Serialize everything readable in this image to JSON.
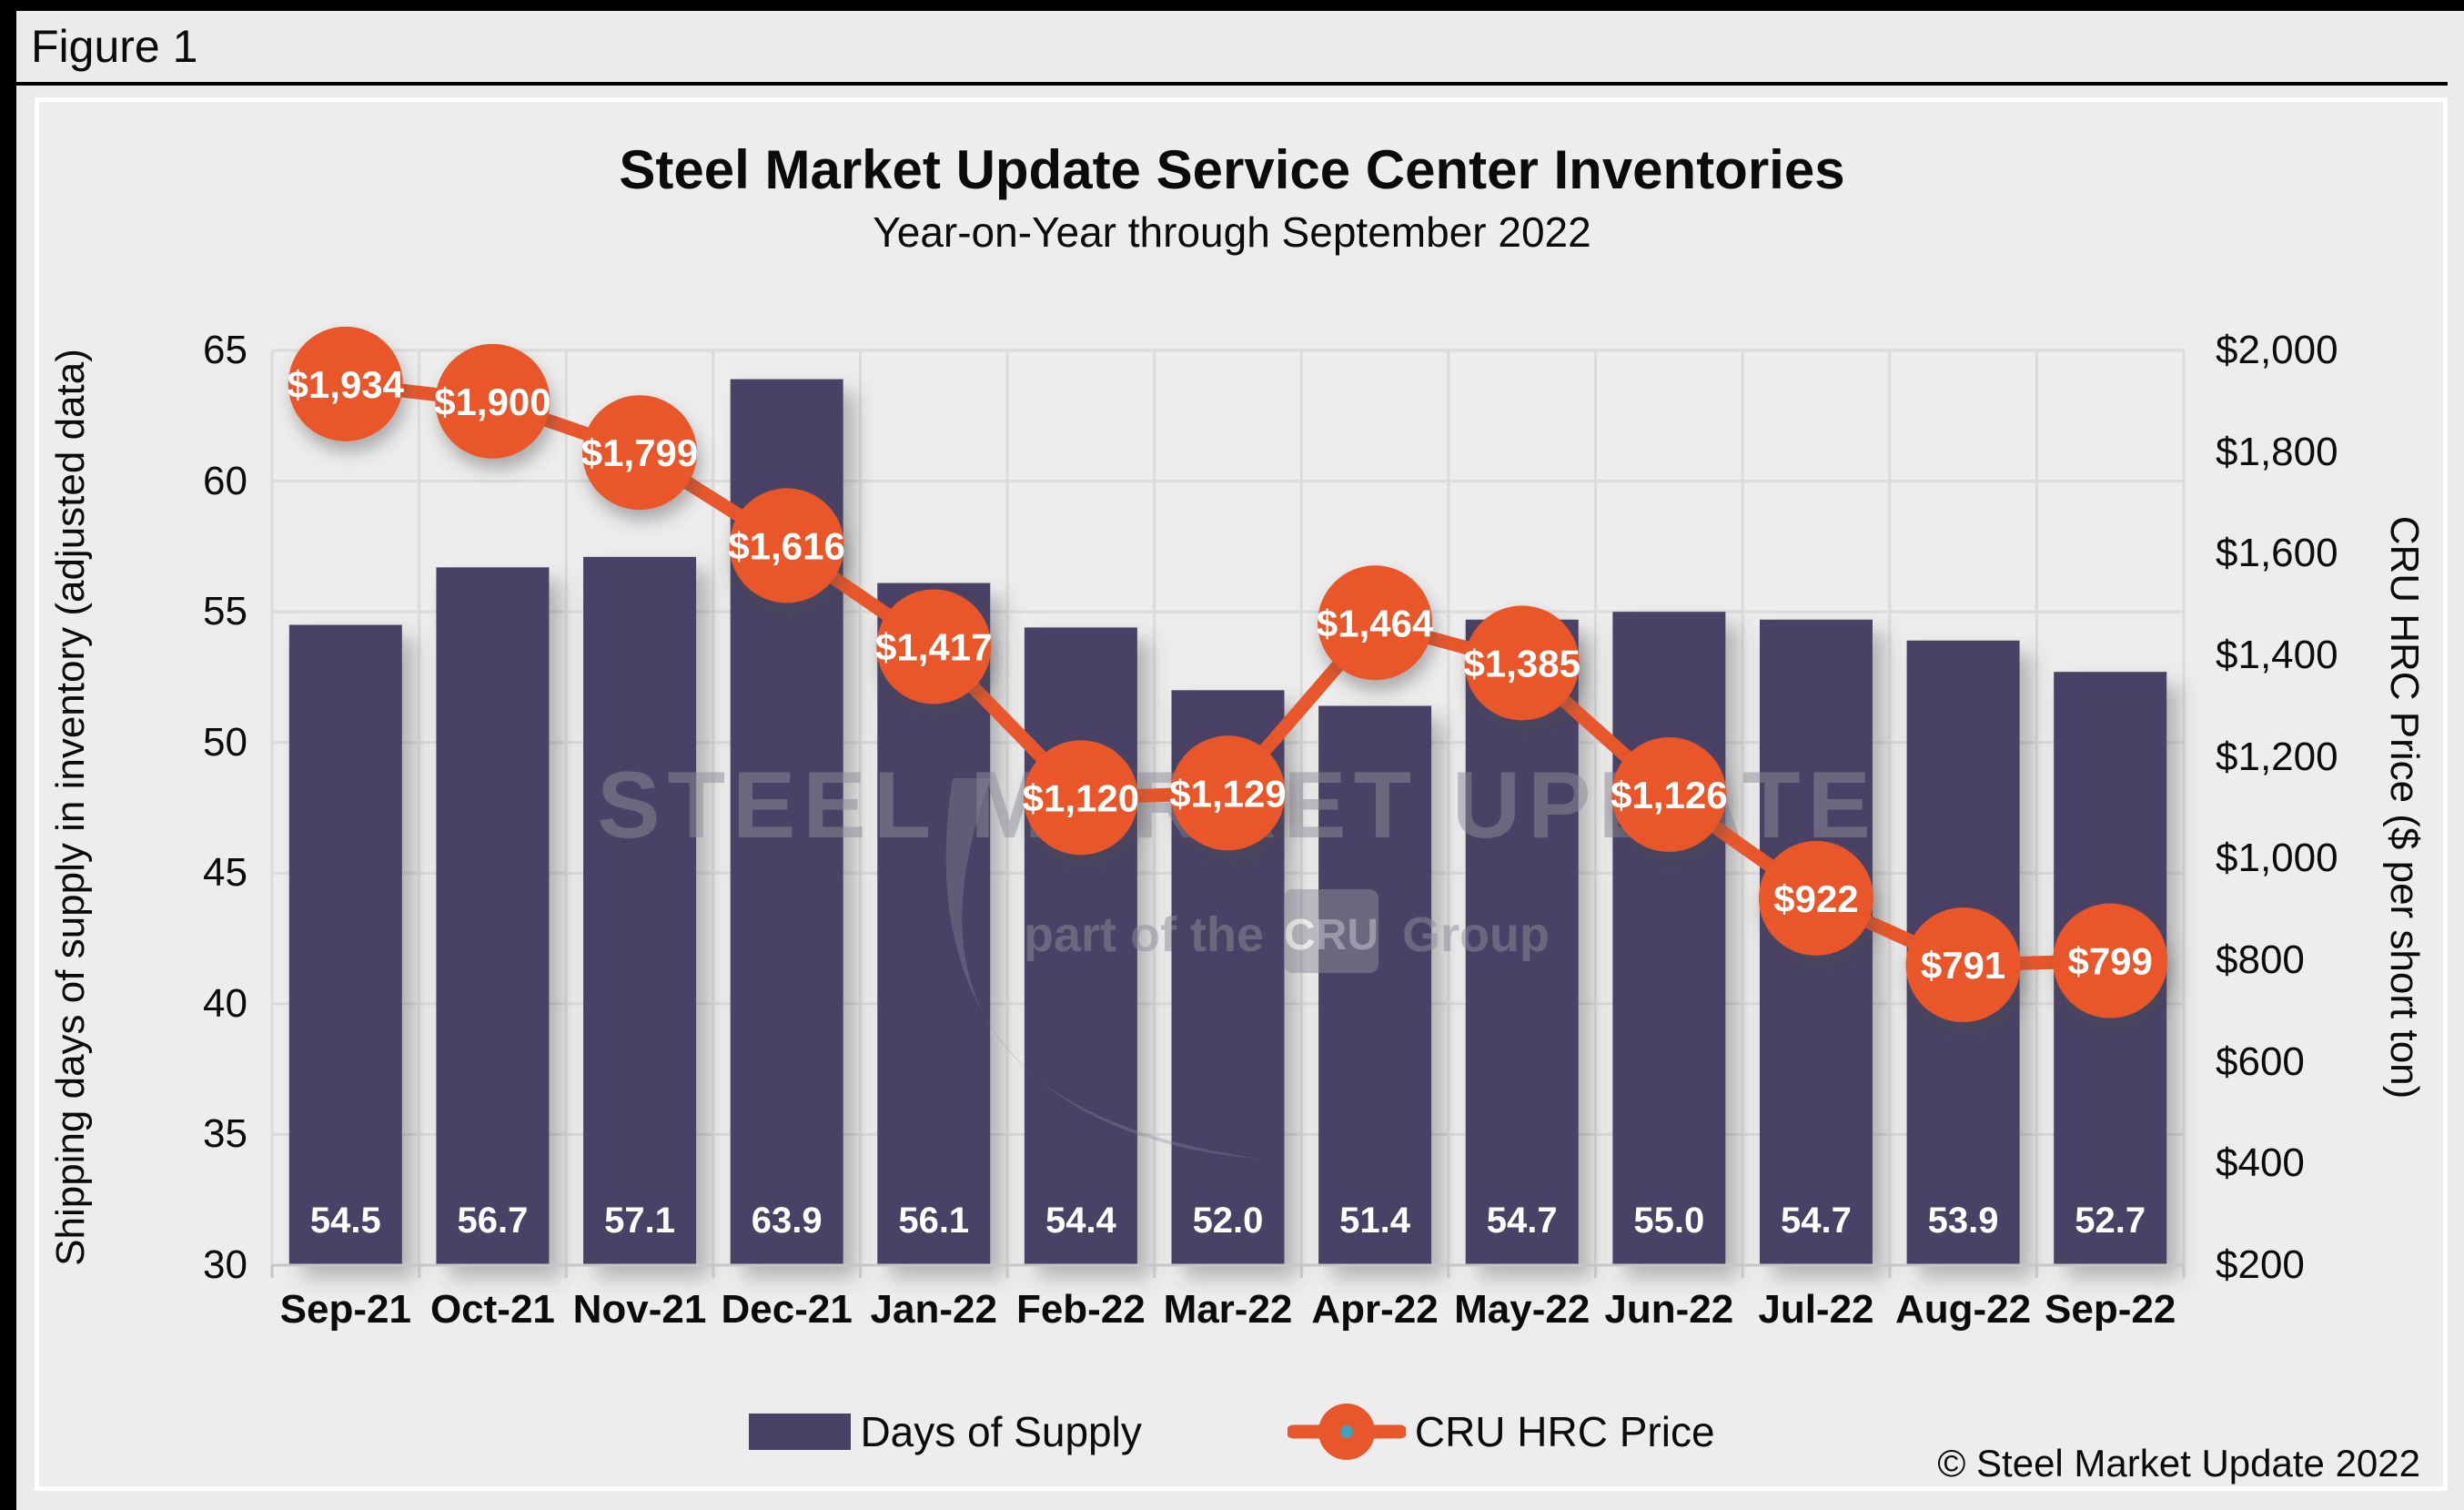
{
  "figure_label": "Figure 1",
  "title": "Steel Market Update Service Center Inventories",
  "subtitle": "Year-on-Year through September 2022",
  "copyright": "© Steel Market Update 2022",
  "watermark": {
    "line1": "STEEL MARKET UPDATE",
    "line2_prefix": "part of the",
    "line2_box": "CRU",
    "line2_suffix": "Group"
  },
  "legend": {
    "bar_label": "Days of Supply",
    "line_label": "CRU HRC Price"
  },
  "colors": {
    "bar": "#4A4266",
    "line": "#E8572B",
    "marker": "#E8572B",
    "marker_text": "#FFFFFF",
    "bar_label_text": "#FFFFFF",
    "legend_dot": "#3FA0C0",
    "plot_bg": "#EDEDED",
    "grid": "#DBDBDB",
    "axis_line": "#C6C6C6",
    "watermark": "#8F8A99"
  },
  "chart_data": {
    "type": "combo",
    "categories": [
      "Sep-21",
      "Oct-21",
      "Nov-21",
      "Dec-21",
      "Jan-22",
      "Feb-22",
      "Mar-22",
      "Apr-22",
      "May-22",
      "Jun-22",
      "Jul-22",
      "Aug-22",
      "Sep-22"
    ],
    "series": [
      {
        "name": "Days of Supply",
        "type": "bar",
        "axis": "left",
        "values": [
          54.5,
          56.7,
          57.1,
          63.9,
          56.1,
          54.4,
          52.0,
          51.4,
          54.7,
          55.0,
          54.7,
          53.9,
          52.7
        ],
        "labels": [
          "54.5",
          "56.7",
          "57.1",
          "63.9",
          "56.1",
          "54.4",
          "52.0",
          "51.4",
          "54.7",
          "55.0",
          "54.7",
          "53.9",
          "52.7"
        ]
      },
      {
        "name": "CRU HRC Price",
        "type": "line",
        "axis": "right",
        "values": [
          1934,
          1900,
          1799,
          1616,
          1417,
          1120,
          1129,
          1464,
          1385,
          1126,
          922,
          791,
          799
        ],
        "labels": [
          "$1,934",
          "$1,900",
          "$1,799",
          "$1,616",
          "$1,417",
          "$1,120",
          "$1,129",
          "$1,464",
          "$1,385",
          "$1,126",
          "$922",
          "$791",
          "$799"
        ]
      }
    ],
    "left_axis": {
      "label": "Shipping days of supply in inventory (adjusted data)",
      "min": 30,
      "max": 65,
      "step": 5,
      "ticks": [
        {
          "value": 65,
          "label": "65"
        },
        {
          "value": 60,
          "label": "60"
        },
        {
          "value": 55,
          "label": "55"
        },
        {
          "value": 50,
          "label": "50"
        },
        {
          "value": 45,
          "label": "45"
        },
        {
          "value": 40,
          "label": "40"
        },
        {
          "value": 35,
          "label": "35"
        },
        {
          "value": 30,
          "label": "30"
        }
      ]
    },
    "right_axis": {
      "label": "CRU HRC Price ($ per short ton)",
      "min": 200,
      "max": 2000,
      "step": 200,
      "ticks": [
        {
          "value": 2000,
          "label": "$2,000"
        },
        {
          "value": 1800,
          "label": "$1,800"
        },
        {
          "value": 1600,
          "label": "$1,600"
        },
        {
          "value": 1400,
          "label": "$1,400"
        },
        {
          "value": 1200,
          "label": "$1,200"
        },
        {
          "value": 1000,
          "label": "$1,000"
        },
        {
          "value": 800,
          "label": "$800"
        },
        {
          "value": 600,
          "label": "$600"
        },
        {
          "value": 400,
          "label": "$400"
        },
        {
          "value": 200,
          "label": "$200"
        }
      ]
    },
    "grid": true,
    "legend_position": "bottom"
  }
}
